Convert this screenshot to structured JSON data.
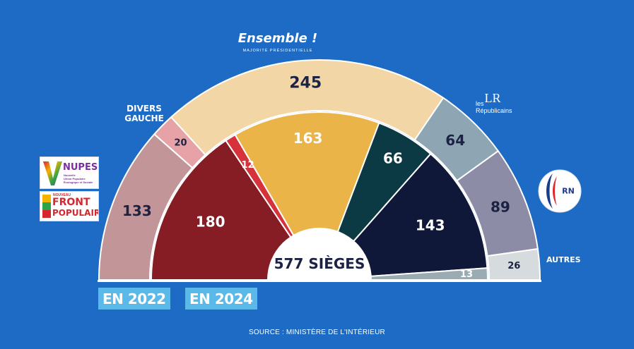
{
  "chart_data": {
    "type": "pie",
    "title": "",
    "total_label": "577 SIÈGES",
    "source": "SOURCE : MINISTÈRE DE L'INTÉRIEUR",
    "rings": [
      {
        "name": "EN 2022",
        "segments": [
          {
            "value": 133,
            "label": "133",
            "color": "#c29599",
            "text_color": "#1b2244"
          },
          {
            "value": 20,
            "label": "20",
            "color": "#e6a2a6",
            "text_color": "#1b2244"
          },
          {
            "value": 245,
            "label": "245",
            "color": "#f3d6a6",
            "text_color": "#1b2244"
          },
          {
            "value": 64,
            "label": "64",
            "color": "#8ea6b4",
            "text_color": "#1b2244"
          },
          {
            "value": 89,
            "label": "89",
            "color": "#8c8ca6",
            "text_color": "#1b2244"
          },
          {
            "value": 26,
            "label": "26",
            "color": "#d6dcde",
            "text_color": "#1b2244"
          }
        ]
      },
      {
        "name": "EN 2024",
        "segments": [
          {
            "value": 180,
            "label": "180",
            "color": "#861c24",
            "text_color": "#ffffff"
          },
          {
            "value": 12,
            "label": "12",
            "color": "#d6323c",
            "text_color": "#ffffff"
          },
          {
            "value": 163,
            "label": "163",
            "color": "#eab448",
            "text_color": "#ffffff"
          },
          {
            "value": 66,
            "label": "66",
            "color": "#0b3a45",
            "text_color": "#ffffff"
          },
          {
            "value": 143,
            "label": "143",
            "color": "#0f1838",
            "text_color": "#ffffff"
          },
          {
            "value": 13,
            "label": "13",
            "color": "#9aacb2",
            "text_color": "#ffffff"
          }
        ]
      }
    ],
    "party_labels": {
      "divers_gauche": [
        "DIVERS",
        "GAUCHE"
      ],
      "ensemble_title": "Ensemble !",
      "ensemble_sub": "MAJORITÉ PRÉSIDENTIELLE",
      "lr_mark": "LR",
      "lr_text": [
        "les",
        "Républicains"
      ],
      "rn_mark": "RN",
      "autres": "AUTRES",
      "nupes": {
        "title": "NUPES",
        "sub": [
          "Nouvelle",
          "Union Populaire",
          "Écologique et Sociale"
        ]
      },
      "nfp": {
        "lines": [
          "NOUVEAU",
          "FRONT",
          "POPULAIRE"
        ]
      }
    }
  }
}
